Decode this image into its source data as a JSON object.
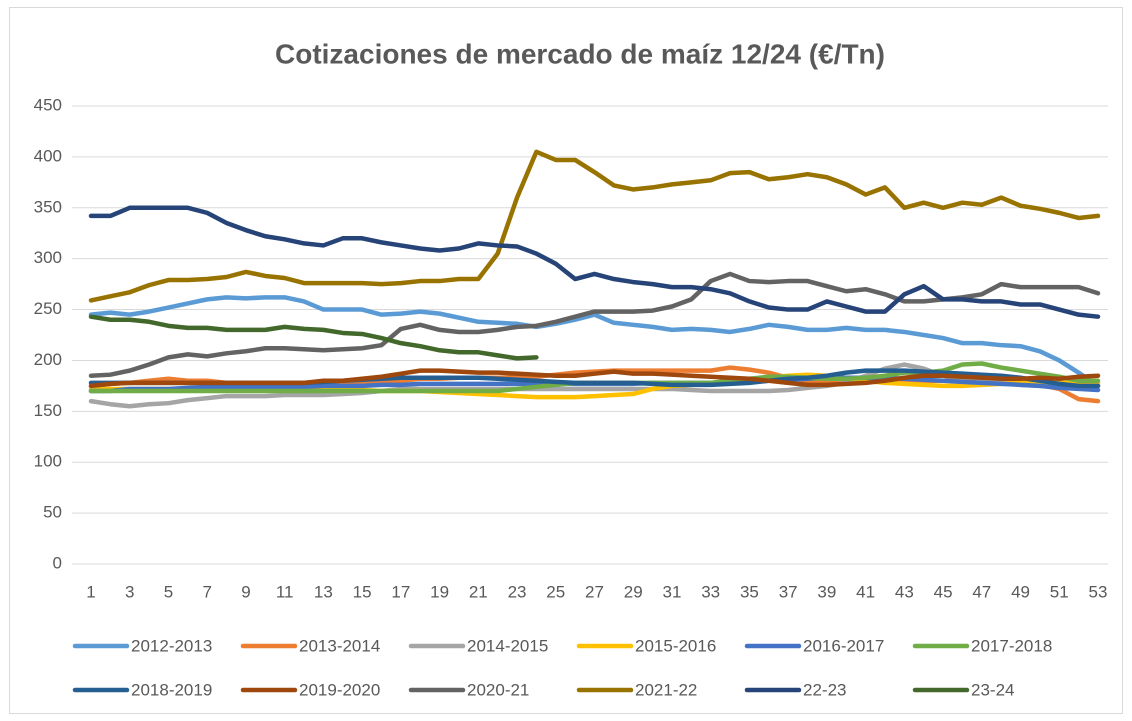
{
  "chart_data": {
    "type": "line",
    "title": "Cotizaciones de mercado de maíz 12/24 (€/Tn)",
    "categories": [
      "1",
      null,
      "3",
      null,
      "5",
      null,
      "7",
      null,
      "9",
      null,
      "11",
      null,
      "13",
      null,
      "15",
      null,
      "17",
      null,
      "19",
      null,
      "21",
      null,
      "23",
      null,
      "25",
      null,
      "27",
      null,
      "29",
      null,
      "31",
      null,
      "33",
      null,
      "35",
      null,
      "37",
      null,
      "39",
      null,
      "41",
      null,
      "43",
      null,
      "45",
      null,
      "47",
      null,
      "49",
      null,
      "51",
      null,
      "53"
    ],
    "ylim": [
      0,
      450
    ],
    "yticks": [
      0,
      50,
      100,
      150,
      200,
      250,
      300,
      350,
      400,
      450
    ],
    "grid": true,
    "legend": "bottom",
    "series": [
      {
        "name": "2012-2013",
        "color": "#5b9bd5",
        "values": [
          245,
          247,
          245,
          248,
          252,
          256,
          260,
          262,
          261,
          262,
          262,
          258,
          250,
          250,
          250,
          245,
          246,
          248,
          246,
          242,
          238,
          237,
          236,
          233,
          236,
          240,
          245,
          237,
          235,
          233,
          230,
          231,
          230,
          228,
          231,
          235,
          233,
          230,
          230,
          232,
          230,
          230,
          228,
          225,
          222,
          217,
          217,
          215,
          214,
          209,
          200,
          188,
          175
        ]
      },
      {
        "name": "2013-2014",
        "color": "#ed7d31",
        "values": [
          175,
          177,
          178,
          180,
          182,
          180,
          180,
          178,
          178,
          177,
          177,
          177,
          177,
          178,
          178,
          178,
          180,
          182,
          182,
          183,
          183,
          183,
          183,
          184,
          186,
          188,
          189,
          190,
          190,
          190,
          190,
          190,
          190,
          193,
          191,
          188,
          183,
          180,
          180,
          180,
          180,
          180,
          180,
          180,
          180,
          180,
          180,
          178,
          178,
          176,
          172,
          162,
          160
        ]
      },
      {
        "name": "2014-2015",
        "color": "#a5a5a5",
        "values": [
          160,
          157,
          155,
          157,
          158,
          161,
          163,
          165,
          165,
          165,
          166,
          166,
          166,
          167,
          168,
          170,
          172,
          172,
          172,
          172,
          172,
          172,
          172,
          172,
          172,
          172,
          172,
          172,
          172,
          172,
          172,
          171,
          170,
          170,
          170,
          170,
          171,
          173,
          175,
          178,
          185,
          192,
          196,
          192,
          185,
          182,
          180,
          178,
          176,
          175,
          174,
          175,
          175
        ]
      },
      {
        "name": "2015-2016",
        "color": "#ffc000",
        "values": [
          172,
          172,
          172,
          172,
          172,
          172,
          172,
          172,
          171,
          171,
          171,
          171,
          171,
          171,
          171,
          170,
          170,
          170,
          169,
          168,
          167,
          166,
          165,
          164,
          164,
          164,
          165,
          166,
          167,
          172,
          175,
          176,
          177,
          178,
          180,
          183,
          185,
          186,
          185,
          183,
          180,
          178,
          177,
          176,
          175,
          175,
          176,
          177,
          178,
          178,
          178,
          178,
          178
        ]
      },
      {
        "name": "2016-2017",
        "color": "#4472c4",
        "values": [
          170,
          170,
          172,
          172,
          172,
          173,
          174,
          174,
          174,
          174,
          174,
          174,
          175,
          175,
          175,
          176,
          176,
          177,
          177,
          177,
          177,
          177,
          177,
          177,
          177,
          177,
          177,
          177,
          177,
          178,
          178,
          178,
          178,
          178,
          179,
          180,
          181,
          182,
          183,
          183,
          183,
          183,
          182,
          181,
          180,
          179,
          178,
          177,
          176,
          175,
          173,
          172,
          171
        ]
      },
      {
        "name": "2017-2018",
        "color": "#70ad47",
        "values": [
          170,
          170,
          170,
          170,
          170,
          170,
          170,
          170,
          170,
          170,
          170,
          170,
          170,
          170,
          170,
          170,
          170,
          170,
          170,
          170,
          170,
          170,
          172,
          174,
          176,
          178,
          178,
          178,
          178,
          178,
          178,
          178,
          178,
          180,
          182,
          184,
          184,
          183,
          182,
          182,
          183,
          185,
          188,
          188,
          190,
          196,
          197,
          193,
          190,
          187,
          184,
          180,
          180
        ]
      },
      {
        "name": "2018-2019",
        "color": "#255e91",
        "values": [
          178,
          178,
          178,
          178,
          178,
          178,
          178,
          178,
          178,
          178,
          178,
          178,
          179,
          180,
          181,
          182,
          183,
          183,
          183,
          183,
          183,
          182,
          181,
          180,
          179,
          178,
          178,
          178,
          178,
          177,
          176,
          176,
          176,
          177,
          178,
          180,
          182,
          183,
          185,
          188,
          190,
          190,
          190,
          189,
          188,
          187,
          186,
          185,
          183,
          180,
          177,
          175,
          175
        ]
      },
      {
        "name": "2019-2020",
        "color": "#9e480e",
        "values": [
          175,
          177,
          178,
          178,
          178,
          178,
          178,
          178,
          178,
          178,
          178,
          178,
          180,
          180,
          182,
          184,
          187,
          190,
          190,
          189,
          188,
          188,
          187,
          186,
          185,
          185,
          187,
          189,
          187,
          187,
          186,
          185,
          184,
          183,
          182,
          180,
          178,
          176,
          176,
          177,
          178,
          180,
          183,
          185,
          185,
          184,
          183,
          182,
          182,
          183,
          182,
          184,
          185
        ]
      },
      {
        "name": "2020-21",
        "color": "#636363",
        "values": [
          185,
          186,
          190,
          196,
          203,
          206,
          204,
          207,
          209,
          212,
          212,
          211,
          210,
          211,
          212,
          215,
          231,
          235,
          230,
          228,
          228,
          230,
          233,
          234,
          238,
          243,
          248,
          248,
          248,
          249,
          253,
          260,
          278,
          285,
          278,
          277,
          278,
          278,
          273,
          268,
          270,
          265,
          258,
          258,
          260,
          262,
          265,
          275,
          272,
          272,
          272,
          272,
          266
        ]
      },
      {
        "name": "2021-22",
        "color": "#997300",
        "values": [
          259,
          263,
          267,
          274,
          279,
          279,
          280,
          282,
          287,
          283,
          281,
          276,
          276,
          276,
          276,
          275,
          276,
          278,
          278,
          280,
          280,
          305,
          360,
          405,
          397,
          397,
          385,
          372,
          368,
          370,
          373,
          375,
          377,
          384,
          385,
          378,
          380,
          383,
          380,
          373,
          363,
          370,
          350,
          355,
          350,
          355,
          353,
          360,
          352,
          349,
          345,
          340,
          342
        ]
      },
      {
        "name": "22-23",
        "color": "#264478",
        "values": [
          342,
          342,
          350,
          350,
          350,
          350,
          345,
          335,
          328,
          322,
          319,
          315,
          313,
          320,
          320,
          316,
          313,
          310,
          308,
          310,
          315,
          313,
          312,
          305,
          295,
          280,
          285,
          280,
          277,
          275,
          272,
          272,
          270,
          266,
          258,
          252,
          250,
          250,
          258,
          253,
          248,
          248,
          265,
          273,
          260,
          260,
          258,
          258,
          255,
          255,
          250,
          245,
          243
        ]
      },
      {
        "name": "23-24",
        "color": "#43682b",
        "values": [
          243,
          240,
          240,
          238,
          234,
          232,
          232,
          230,
          230,
          230,
          233,
          231,
          230,
          227,
          226,
          222,
          217,
          214,
          210,
          208,
          208,
          205,
          202,
          203,
          null,
          null,
          null,
          null,
          null,
          null,
          null,
          null,
          null,
          null,
          null,
          null,
          null,
          null,
          null,
          null,
          null,
          null,
          null,
          null,
          null,
          null,
          null,
          null,
          null,
          null,
          null,
          null,
          null
        ]
      }
    ]
  }
}
